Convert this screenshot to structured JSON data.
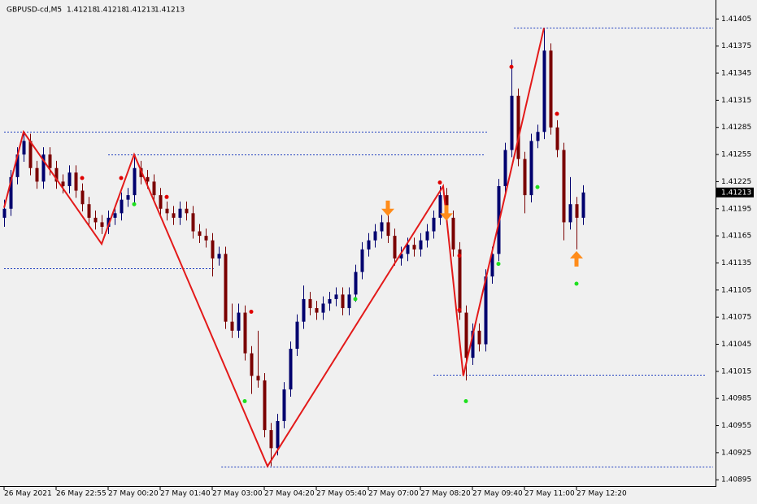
{
  "chart_data": {
    "type": "candlestick",
    "header": {
      "symbol": "GBPUSD-cd,M5",
      "ohlc": [
        1.41218,
        1.41218,
        1.41213,
        1.41213
      ]
    },
    "categories": [
      "26 May 2021",
      null,
      null,
      null,
      null,
      null,
      null,
      null,
      "26 May 22:55",
      null,
      null,
      null,
      null,
      null,
      null,
      null,
      "27 May 00:20",
      null,
      null,
      null,
      null,
      null,
      null,
      null,
      "27 May 01:40",
      null,
      null,
      null,
      null,
      null,
      null,
      null,
      "27 May 03:00",
      null,
      null,
      null,
      null,
      null,
      null,
      null,
      "27 May 04:20",
      null,
      null,
      null,
      null,
      null,
      null,
      null,
      "27 May 05:40",
      null,
      null,
      null,
      null,
      null,
      null,
      null,
      "27 May 07:00",
      null,
      null,
      null,
      null,
      null,
      null,
      null,
      "27 May 08:20",
      null,
      null,
      null,
      null,
      null,
      null,
      null,
      "27 May 09:40",
      null,
      null,
      null,
      null,
      null,
      null,
      null,
      "27 May 11:00",
      null,
      null,
      null,
      null,
      null,
      null,
      null,
      "27 May 12:20",
      null
    ],
    "open": [
      1.41185,
      1.41195,
      1.4123,
      1.41255,
      1.4127,
      1.4124,
      1.41225,
      1.41255,
      1.4124,
      1.41225,
      1.4122,
      1.41235,
      1.41215,
      1.412,
      1.41185,
      1.4118,
      1.41175,
      1.41185,
      1.4119,
      1.41205,
      1.4121,
      1.4124,
      1.4123,
      1.41225,
      1.4121,
      1.41195,
      1.4119,
      1.41185,
      1.41195,
      1.4119,
      1.4117,
      1.41165,
      1.4116,
      1.4114,
      1.41145,
      1.4107,
      1.4106,
      1.4108,
      1.41035,
      1.4101,
      1.41005,
      1.4095,
      1.4093,
      1.4096,
      1.40995,
      1.4104,
      1.4107,
      1.41095,
      1.41085,
      1.4108,
      1.4109,
      1.41095,
      1.411,
      1.41085,
      1.411,
      1.41125,
      1.4115,
      1.4116,
      1.4117,
      1.4118,
      1.41165,
      1.4114,
      1.41145,
      1.41155,
      1.4115,
      1.4116,
      1.4117,
      1.41185,
      1.4121,
      1.41185,
      1.4115,
      1.4108,
      1.4103,
      1.4106,
      1.41045,
      1.4112,
      1.41145,
      1.4122,
      1.4126,
      1.4132,
      1.4125,
      1.4121,
      1.4127,
      1.4128,
      1.4137,
      1.41285,
      1.4126,
      1.4118,
      1.412,
      1.41185
    ],
    "high": [
      1.41205,
      1.41238,
      1.41263,
      1.4128,
      1.41278,
      1.41248,
      1.41263,
      1.41263,
      1.41248,
      1.41233,
      1.41243,
      1.41243,
      1.41223,
      1.41208,
      1.41193,
      1.41188,
      1.41193,
      1.41198,
      1.41213,
      1.41218,
      1.41255,
      1.41248,
      1.41238,
      1.41233,
      1.41218,
      1.41203,
      1.41198,
      1.41203,
      1.41203,
      1.41198,
      1.41178,
      1.41173,
      1.41168,
      1.41153,
      1.41153,
      1.4109,
      1.4109,
      1.41088,
      1.41043,
      1.4106,
      1.41013,
      1.40958,
      1.40968,
      1.41003,
      1.41048,
      1.41078,
      1.4111,
      1.41103,
      1.41093,
      1.41098,
      1.41103,
      1.41108,
      1.41108,
      1.41108,
      1.41133,
      1.41158,
      1.41168,
      1.41178,
      1.41188,
      1.41188,
      1.41173,
      1.41153,
      1.41163,
      1.41163,
      1.41168,
      1.41178,
      1.41193,
      1.4122,
      1.41218,
      1.41193,
      1.41158,
      1.41088,
      1.41068,
      1.41068,
      1.41128,
      1.41153,
      1.41228,
      1.41268,
      1.4136,
      1.41328,
      1.41258,
      1.41278,
      1.41288,
      1.41395,
      1.41378,
      1.41293,
      1.41268,
      1.4123,
      1.41208,
      1.41221
    ],
    "low": [
      1.41175,
      1.41187,
      1.41222,
      1.41247,
      1.41232,
      1.41217,
      1.41217,
      1.41232,
      1.41217,
      1.41212,
      1.41212,
      1.41207,
      1.41192,
      1.41177,
      1.41172,
      1.41167,
      1.41167,
      1.41177,
      1.41182,
      1.41197,
      1.41202,
      1.41222,
      1.41217,
      1.41202,
      1.41187,
      1.41182,
      1.41177,
      1.41177,
      1.41182,
      1.41162,
      1.41157,
      1.41152,
      1.4112,
      1.41132,
      1.41062,
      1.41052,
      1.41052,
      1.41027,
      1.4099,
      1.40997,
      1.40942,
      1.4091,
      1.40922,
      1.40952,
      1.40987,
      1.41032,
      1.41062,
      1.41077,
      1.41072,
      1.41072,
      1.41082,
      1.41087,
      1.41077,
      1.41077,
      1.41092,
      1.41117,
      1.41142,
      1.41152,
      1.41162,
      1.41157,
      1.41132,
      1.41132,
      1.41137,
      1.41142,
      1.41142,
      1.41152,
      1.41162,
      1.41177,
      1.41177,
      1.41142,
      1.41072,
      1.41005,
      1.41022,
      1.41037,
      1.41037,
      1.41112,
      1.41137,
      1.41212,
      1.41252,
      1.41242,
      1.4119,
      1.41202,
      1.41262,
      1.41272,
      1.41277,
      1.41252,
      1.4116,
      1.41172,
      1.4115,
      1.41177
    ],
    "close": [
      1.41195,
      1.4123,
      1.41255,
      1.4127,
      1.4124,
      1.41225,
      1.41255,
      1.4124,
      1.41225,
      1.4122,
      1.41235,
      1.41215,
      1.412,
      1.41185,
      1.4118,
      1.41175,
      1.41185,
      1.4119,
      1.41205,
      1.4121,
      1.4124,
      1.4123,
      1.41225,
      1.4121,
      1.41195,
      1.4119,
      1.41185,
      1.41195,
      1.4119,
      1.4117,
      1.41165,
      1.4116,
      1.4114,
      1.41145,
      1.4107,
      1.4106,
      1.4108,
      1.41035,
      1.4101,
      1.41005,
      1.4095,
      1.4093,
      1.4096,
      1.40995,
      1.4104,
      1.4107,
      1.41095,
      1.41085,
      1.4108,
      1.4109,
      1.41095,
      1.411,
      1.41085,
      1.411,
      1.41125,
      1.4115,
      1.4116,
      1.4117,
      1.4118,
      1.41165,
      1.4114,
      1.41145,
      1.41155,
      1.4115,
      1.4116,
      1.4117,
      1.41185,
      1.4121,
      1.41185,
      1.4115,
      1.4108,
      1.4103,
      1.4106,
      1.41045,
      1.4112,
      1.41145,
      1.4122,
      1.4126,
      1.4132,
      1.4125,
      1.4121,
      1.4127,
      1.4128,
      1.4137,
      1.41285,
      1.4126,
      1.4118,
      1.412,
      1.41185,
      1.41213
    ],
    "up_color": "#00006e",
    "down_color": "#7a0000",
    "zigzag": {
      "color": "#e31a1a",
      "x": [
        0,
        3,
        15,
        20,
        40.5,
        67.5,
        70.6,
        83
      ],
      "y": [
        1.41196,
        1.4128,
        1.41156,
        1.41255,
        1.4091,
        1.4122,
        1.4101,
        1.41395
      ]
    },
    "levels": {
      "color": "#1f3fbf",
      "values": [
        1.41395,
        1.4128,
        1.41255,
        1.41129,
        1.41011,
        1.4091
      ],
      "start": [
        78.4,
        0,
        16,
        0,
        66,
        33.4
      ],
      "end": [
        109,
        74.4,
        74,
        32.5,
        108,
        109
      ]
    },
    "sell_dots": {
      "color": "#e00000",
      "x": [
        12,
        18,
        25,
        38,
        67,
        70,
        70,
        78,
        85
      ],
      "y": [
        1.41229,
        1.41229,
        1.41208,
        1.41081,
        1.41224,
        1.41143,
        1.41083,
        1.41352,
        1.413
      ]
    },
    "buy_dots": {
      "color": "#1ee01e",
      "x": [
        20,
        37,
        54,
        71,
        76,
        82,
        88
      ],
      "y": [
        1.412,
        1.40982,
        1.41095,
        1.40982,
        1.41134,
        1.41219,
        1.41112
      ]
    },
    "arrows": {
      "color": "#ff8c1a",
      "x": [
        59,
        68,
        88
      ],
      "y": [
        1.41195,
        1.4119,
        1.4114
      ],
      "direction": [
        "down",
        "down",
        "up"
      ]
    },
    "ylim": [
      1.40888,
      1.41426
    ],
    "yticks": [
      1.41405,
      1.41375,
      1.41345,
      1.41315,
      1.41285,
      1.41255,
      1.41225,
      1.41195,
      1.41165,
      1.41135,
      1.41105,
      1.41075,
      1.41045,
      1.41015,
      1.40985,
      1.40955,
      1.40925,
      1.40895
    ]
  }
}
